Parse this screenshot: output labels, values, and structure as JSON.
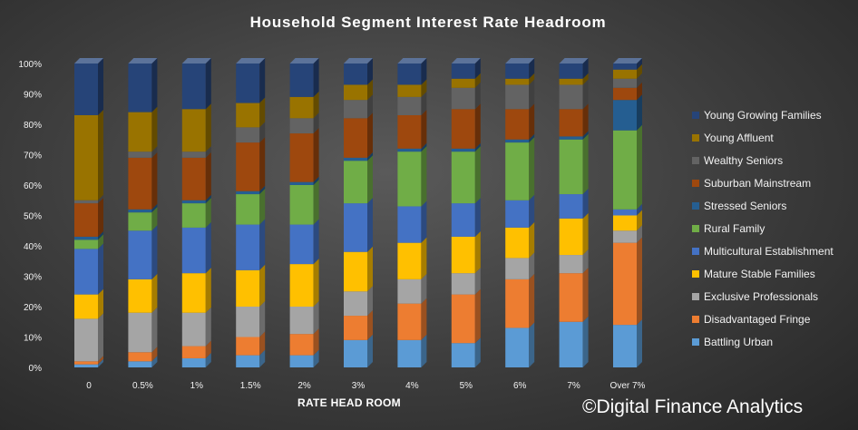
{
  "chart_data": {
    "type": "bar",
    "stacked": true,
    "percent_stacked": true,
    "title": "Household Segment Interest Rate Headroom",
    "xlabel": "RATE HEAD ROOM",
    "ylabel": "",
    "ylim": [
      0,
      100
    ],
    "y_ticks": [
      "0%",
      "10%",
      "20%",
      "30%",
      "40%",
      "50%",
      "60%",
      "70%",
      "80%",
      "90%",
      "100%"
    ],
    "categories": [
      "0",
      "0.5%",
      "1%",
      "1.5%",
      "2%",
      "3%",
      "4%",
      "5%",
      "6%",
      "7%",
      "Over 7%"
    ],
    "legend_position": "right",
    "grid": false,
    "series": [
      {
        "name": "Battling Urban",
        "color": "#5b9bd5",
        "values": [
          1,
          2,
          3,
          4,
          4,
          9,
          9,
          8,
          13,
          15,
          14
        ]
      },
      {
        "name": "Disadvantaged Fringe",
        "color": "#ed7d31",
        "values": [
          1,
          3,
          4,
          6,
          7,
          8,
          12,
          16,
          16,
          16,
          27
        ]
      },
      {
        "name": "Exclusive Professionals",
        "color": "#a5a5a5",
        "values": [
          14,
          13,
          11,
          10,
          9,
          8,
          8,
          7,
          7,
          6,
          4
        ]
      },
      {
        "name": "Mature Stable Families",
        "color": "#ffc000",
        "values": [
          8,
          11,
          13,
          12,
          14,
          13,
          12,
          12,
          10,
          12,
          5
        ]
      },
      {
        "name": "Multicultural Establishment",
        "color": "#4472c4",
        "values": [
          15,
          16,
          15,
          15,
          13,
          16,
          12,
          11,
          9,
          8,
          2
        ]
      },
      {
        "name": "Rural Family",
        "color": "#70ad47",
        "values": [
          3,
          6,
          8,
          10,
          13,
          14,
          18,
          17,
          19,
          18,
          26
        ]
      },
      {
        "name": "Stressed Seniors",
        "color": "#255e91",
        "values": [
          1,
          1,
          1,
          1,
          1,
          1,
          1,
          1,
          1,
          1,
          10
        ]
      },
      {
        "name": "Suburban Mainstream",
        "color": "#9e480e",
        "values": [
          11,
          17,
          14,
          16,
          16,
          13,
          11,
          13,
          10,
          9,
          4
        ]
      },
      {
        "name": "Wealthy Seniors",
        "color": "#636363",
        "values": [
          1,
          2,
          2,
          5,
          5,
          6,
          6,
          7,
          8,
          8,
          3
        ]
      },
      {
        "name": "Young Affluent",
        "color": "#997300",
        "values": [
          28,
          13,
          14,
          8,
          7,
          5,
          4,
          3,
          2,
          2,
          3
        ]
      },
      {
        "name": "Young Growing Families",
        "color": "#264478",
        "values": [
          17,
          16,
          15,
          13,
          11,
          7,
          7,
          5,
          5,
          5,
          2
        ]
      }
    ]
  },
  "watermark": "©Digital Finance Analytics"
}
